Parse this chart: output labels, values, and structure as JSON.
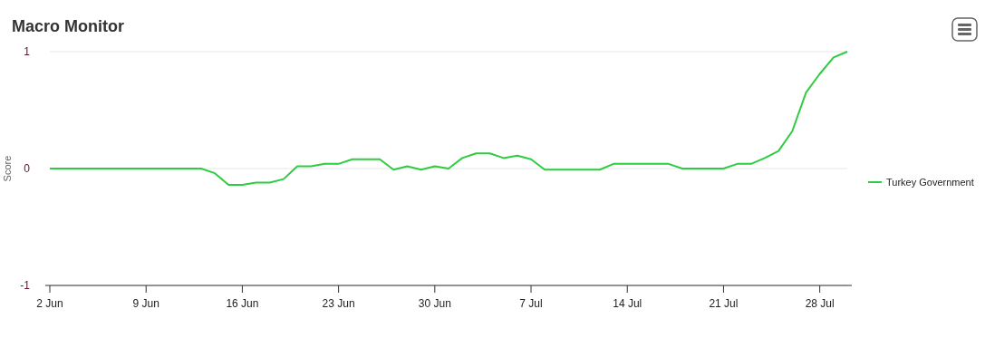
{
  "chart_data": {
    "type": "line",
    "title": "Macro Monitor",
    "ylabel": "Score",
    "x": [
      "--06-02",
      "--06-03",
      "--06-04",
      "--06-05",
      "--06-06",
      "--06-07",
      "--06-08",
      "--06-09",
      "--06-10",
      "--06-11",
      "--06-12",
      "--06-13",
      "--06-14",
      "--06-15",
      "--06-16",
      "--06-17",
      "--06-18",
      "--06-19",
      "--06-20",
      "--06-21",
      "--06-22",
      "--06-23",
      "--06-24",
      "--06-25",
      "--06-26",
      "--06-27",
      "--06-28",
      "--06-29",
      "--06-30",
      "--07-01",
      "--07-02",
      "--07-03",
      "--07-04",
      "--07-05",
      "--07-06",
      "--07-07",
      "--07-08",
      "--07-09",
      "--07-10",
      "--07-11",
      "--07-12",
      "--07-13",
      "--07-14",
      "--07-15",
      "--07-16",
      "--07-17",
      "--07-18",
      "--07-19",
      "--07-20",
      "--07-21",
      "--07-22",
      "--07-23",
      "--07-24",
      "--07-25",
      "--07-26",
      "--07-27",
      "--07-28",
      "--07-29",
      "--07-30"
    ],
    "series": [
      {
        "name": "Turkey Government",
        "color": "#2ecc40",
        "values": [
          0,
          0,
          0,
          0,
          0,
          0,
          0,
          0,
          0,
          0,
          0,
          0,
          -0.04,
          -0.14,
          -0.14,
          -0.12,
          -0.12,
          -0.09,
          0.02,
          0.02,
          0.04,
          0.04,
          0.08,
          0.08,
          0.08,
          -0.01,
          0.02,
          -0.01,
          0.02,
          0,
          0.09,
          0.13,
          0.13,
          0.09,
          0.11,
          0.08,
          -0.01,
          -0.01,
          -0.01,
          -0.01,
          -0.01,
          0.04,
          0.04,
          0.04,
          0.04,
          0.04,
          0,
          0,
          0,
          0,
          0.04,
          0.04,
          0.09,
          0.15,
          0.32,
          0.65,
          0.81,
          0.95,
          1
        ]
      }
    ],
    "xlim": [
      "--06-02",
      "--07-30"
    ],
    "xticks": [
      {
        "value": "--06-02",
        "label": "2 Jun"
      },
      {
        "value": "--06-09",
        "label": "9 Jun"
      },
      {
        "value": "--06-16",
        "label": "16 Jun"
      },
      {
        "value": "--06-23",
        "label": "23 Jun"
      },
      {
        "value": "--06-30",
        "label": "30 Jun"
      },
      {
        "value": "--07-07",
        "label": "7 Jul"
      },
      {
        "value": "--07-14",
        "label": "14 Jul"
      },
      {
        "value": "--07-21",
        "label": "21 Jul"
      },
      {
        "value": "--07-28",
        "label": "28 Jul"
      }
    ],
    "ylim": [
      -1,
      1
    ],
    "yticks": [
      -1,
      0,
      1
    ],
    "grid": "y",
    "legend": "right",
    "marker": "none",
    "line_style": "solid"
  }
}
